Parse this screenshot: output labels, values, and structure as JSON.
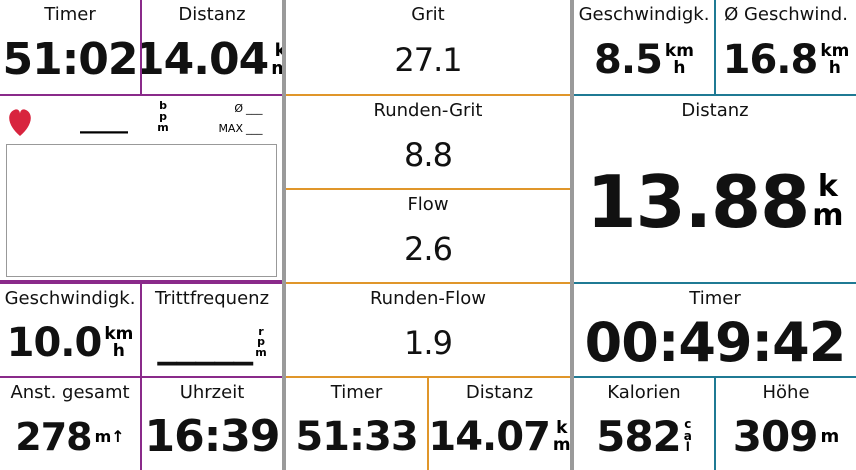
{
  "fields": [
    {
      "label": "Timer",
      "value": "51:02",
      "unit": []
    },
    {
      "label": "Distanz",
      "value": "14.04",
      "unit": [
        "k",
        "m"
      ]
    },
    {
      "label": "Geschwindigk.",
      "value": "10.0",
      "unit": [
        "km",
        "h"
      ]
    },
    {
      "label": "Trittfrequenz",
      "value": "_____",
      "unit": [
        "r",
        "p",
        "m"
      ]
    },
    {
      "label": "Anst. gesamt",
      "value": "278",
      "unit": [
        "m↑"
      ]
    },
    {
      "label": "Uhrzeit",
      "value": "16:39",
      "unit": []
    },
    {
      "label": "Grit",
      "value": "27.1",
      "unit": []
    },
    {
      "label": "Runden-Grit",
      "value": "8.8",
      "unit": []
    },
    {
      "label": "Flow",
      "value": "2.6",
      "unit": []
    },
    {
      "label": "Runden-Flow",
      "value": "1.9",
      "unit": []
    },
    {
      "label": "Timer",
      "value": "51:33",
      "unit": []
    },
    {
      "label": "Distanz",
      "value": "14.07",
      "unit": [
        "k",
        "m"
      ]
    },
    {
      "label": "Geschwindigk.",
      "value": "8.5",
      "unit": [
        "km",
        "h"
      ]
    },
    {
      "label": "Ø Geschwind.",
      "value": "16.8",
      "unit": [
        "km",
        "h"
      ]
    },
    {
      "label": "Distanz",
      "value": "13.88",
      "unit": [
        "k",
        "m"
      ]
    },
    {
      "label": "Timer",
      "value": "00:49:42",
      "unit": []
    },
    {
      "label": "Kalorien",
      "value": "582",
      "unit": [
        "c",
        "a",
        "l"
      ]
    },
    {
      "label": "Höhe",
      "value": "309",
      "unit": [
        "m"
      ]
    }
  ],
  "heart_rate": {
    "value": "____",
    "unit": [
      "b",
      "p",
      "m"
    ],
    "avg_label": "Ø",
    "avg_value": "___",
    "max_label": "MAX",
    "max_value": "___"
  }
}
